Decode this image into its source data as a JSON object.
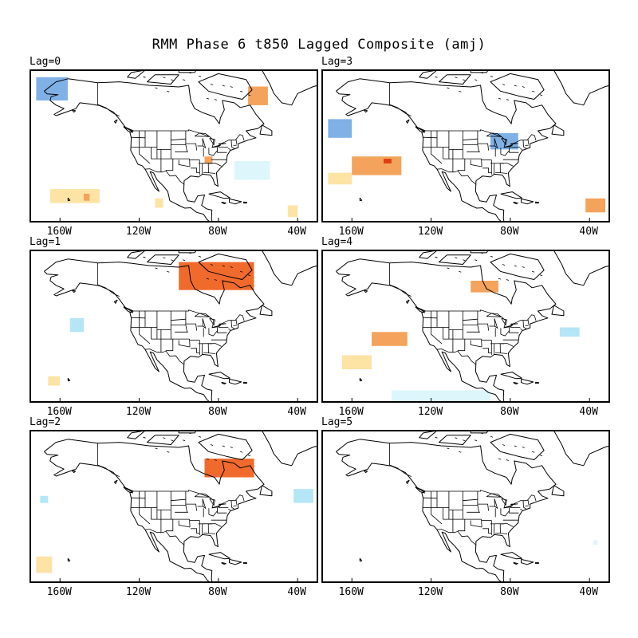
{
  "title": "RMM Phase 6 t850 Lagged Composite (amj)",
  "lon_ticks": [
    "160W",
    "120W",
    "80W",
    "40W"
  ],
  "colors": {
    "dark_red": "#e03c10",
    "red": "#f06a2c",
    "orange": "#f4a35c",
    "light_orange": "#fde3a4",
    "blue": "#7fb1e6",
    "light_blue": "#b4e6f6",
    "pale_blue": "#dcf6fb"
  },
  "panels": [
    {
      "id": "lag0",
      "label": "Lag=0",
      "shading": [
        {
          "lon": [
            -172,
            -156
          ],
          "lat": [
            62,
            72
          ],
          "color": "blue"
        },
        {
          "lon": [
            -65,
            -55
          ],
          "lat": [
            60,
            68
          ],
          "color": "orange"
        },
        {
          "lon": [
            -165,
            -140
          ],
          "lat": [
            18,
            24
          ],
          "color": "light_orange"
        },
        {
          "lon": [
            -148,
            -145
          ],
          "lat": [
            19,
            22
          ],
          "color": "orange"
        },
        {
          "lon": [
            -87,
            -83
          ],
          "lat": [
            35,
            38
          ],
          "color": "orange"
        },
        {
          "lon": [
            -72,
            -54
          ],
          "lat": [
            28,
            36
          ],
          "color": "pale_blue"
        },
        {
          "lon": [
            -112,
            -108
          ],
          "lat": [
            16,
            20
          ],
          "color": "light_orange"
        },
        {
          "lon": [
            -45,
            -40
          ],
          "lat": [
            12,
            17
          ],
          "color": "light_orange"
        }
      ]
    },
    {
      "id": "lag3",
      "label": "Lag=3",
      "shading": [
        {
          "lon": [
            -172,
            -160
          ],
          "lat": [
            46,
            54
          ],
          "color": "blue"
        },
        {
          "lon": [
            -160,
            -135
          ],
          "lat": [
            30,
            38
          ],
          "color": "orange"
        },
        {
          "lon": [
            -144,
            -140
          ],
          "lat": [
            35,
            37
          ],
          "color": "dark_red"
        },
        {
          "lon": [
            -90,
            -76
          ],
          "lat": [
            41,
            48
          ],
          "color": "blue"
        },
        {
          "lon": [
            -172,
            -160
          ],
          "lat": [
            26,
            31
          ],
          "color": "light_orange"
        },
        {
          "lon": [
            -42,
            -32
          ],
          "lat": [
            14,
            20
          ],
          "color": "orange"
        }
      ]
    },
    {
      "id": "lag1",
      "label": "Lag=1",
      "shading": [
        {
          "lon": [
            -100,
            -62
          ],
          "lat": [
            58,
            70
          ],
          "color": "red"
        },
        {
          "lon": [
            -155,
            -148
          ],
          "lat": [
            40,
            46
          ],
          "color": "light_blue"
        },
        {
          "lon": [
            -166,
            -160
          ],
          "lat": [
            17,
            21
          ],
          "color": "light_orange"
        }
      ]
    },
    {
      "id": "lag4",
      "label": "Lag=4",
      "shading": [
        {
          "lon": [
            -100,
            -86
          ],
          "lat": [
            57,
            62
          ],
          "color": "orange"
        },
        {
          "lon": [
            -150,
            -132
          ],
          "lat": [
            34,
            40
          ],
          "color": "orange"
        },
        {
          "lon": [
            -165,
            -150
          ],
          "lat": [
            24,
            30
          ],
          "color": "light_orange"
        },
        {
          "lon": [
            -140,
            -90
          ],
          "lat": [
            9,
            15
          ],
          "color": "pale_blue"
        },
        {
          "lon": [
            -55,
            -45
          ],
          "lat": [
            38,
            42
          ],
          "color": "light_blue"
        }
      ]
    },
    {
      "id": "lag2",
      "label": "Lag=2",
      "shading": [
        {
          "lon": [
            -87,
            -62
          ],
          "lat": [
            55,
            63
          ],
          "color": "red"
        },
        {
          "lon": [
            -42,
            -32
          ],
          "lat": [
            44,
            50
          ],
          "color": "light_blue"
        },
        {
          "lon": [
            -172,
            -164
          ],
          "lat": [
            14,
            21
          ],
          "color": "light_orange"
        },
        {
          "lon": [
            -170,
            -166
          ],
          "lat": [
            44,
            47
          ],
          "color": "light_blue"
        }
      ]
    },
    {
      "id": "lag5",
      "label": "Lag=5",
      "shading": [
        {
          "lon": [
            -38,
            -36
          ],
          "lat": [
            26,
            28
          ],
          "color": "pale_blue"
        }
      ]
    }
  ]
}
